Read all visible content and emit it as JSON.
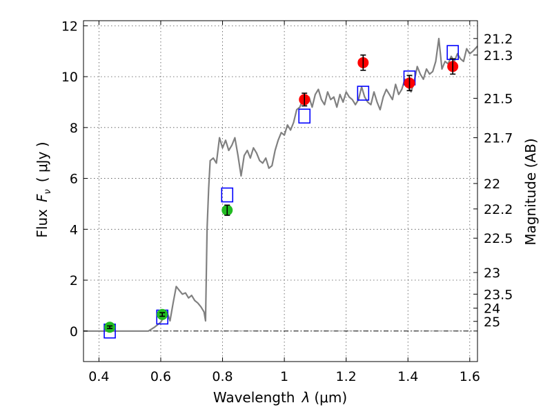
{
  "chart_data": {
    "type": "scatter",
    "xlabel_text": "Wavelength",
    "xlabel_symbol": "λ",
    "xlabel_unit": "(μm)",
    "ylabel_text": "Flux",
    "ylabel_symbol": "F",
    "ylabel_subscript": "ν",
    "ylabel_unit": "( μJy )",
    "y2label": "Magnitude (AB)",
    "xlim": [
      0.35,
      1.625
    ],
    "ylim": [
      -1.2,
      12.2
    ],
    "grid": true,
    "x_ticks": [
      0.4,
      0.6,
      0.8,
      1.0,
      1.2,
      1.4,
      1.6
    ],
    "x_tick_labels": [
      "0.4",
      "0.6",
      "0.8",
      "1",
      "1.2",
      "1.4",
      "1.6"
    ],
    "y_ticks": [
      0,
      2,
      4,
      6,
      8,
      10,
      12
    ],
    "y_tick_labels": [
      "0",
      "2",
      "4",
      "6",
      "8",
      "10",
      "12"
    ],
    "y2_ticks": [
      {
        "flux": 11.5,
        "label": "21.2"
      },
      {
        "flux": 10.85,
        "label": "21.3"
      },
      {
        "flux": 9.15,
        "label": "21.5"
      },
      {
        "flux": 7.6,
        "label": "21.7"
      },
      {
        "flux": 5.8,
        "label": "22"
      },
      {
        "flux": 4.8,
        "label": "22.2"
      },
      {
        "flux": 3.65,
        "label": "22.5"
      },
      {
        "flux": 2.3,
        "label": "23"
      },
      {
        "flux": 1.45,
        "label": "23.5"
      },
      {
        "flux": 0.9,
        "label": "24"
      },
      {
        "flux": 0.38,
        "label": "25"
      }
    ],
    "series": [
      {
        "kind": "line",
        "color": "#808080",
        "x": [
          0.35,
          0.56,
          0.58,
          0.6,
          0.61,
          0.62,
          0.63,
          0.64,
          0.65,
          0.66,
          0.67,
          0.68,
          0.69,
          0.7,
          0.71,
          0.72,
          0.73,
          0.74,
          0.745,
          0.75,
          0.755,
          0.76,
          0.77,
          0.78,
          0.79,
          0.8,
          0.81,
          0.82,
          0.83,
          0.84,
          0.85,
          0.86,
          0.87,
          0.88,
          0.89,
          0.9,
          0.91,
          0.92,
          0.93,
          0.94,
          0.95,
          0.96,
          0.97,
          0.98,
          0.99,
          1.0,
          1.01,
          1.02,
          1.03,
          1.04,
          1.05,
          1.06,
          1.07,
          1.08,
          1.09,
          1.1,
          1.11,
          1.12,
          1.13,
          1.14,
          1.15,
          1.16,
          1.17,
          1.18,
          1.19,
          1.2,
          1.21,
          1.22,
          1.23,
          1.24,
          1.25,
          1.26,
          1.27,
          1.28,
          1.29,
          1.3,
          1.31,
          1.32,
          1.33,
          1.34,
          1.35,
          1.36,
          1.37,
          1.38,
          1.39,
          1.4,
          1.41,
          1.42,
          1.43,
          1.44,
          1.45,
          1.46,
          1.47,
          1.48,
          1.49,
          1.5,
          1.51,
          1.52,
          1.53,
          1.54,
          1.55,
          1.56,
          1.57,
          1.58,
          1.59,
          1.6,
          1.61,
          1.625
        ],
        "values": [
          0.0,
          0.0,
          0.15,
          0.35,
          0.55,
          0.75,
          0.4,
          1.1,
          1.75,
          1.6,
          1.45,
          1.5,
          1.3,
          1.4,
          1.2,
          1.1,
          0.95,
          0.75,
          0.4,
          4.0,
          5.6,
          6.7,
          6.8,
          6.6,
          7.6,
          7.2,
          7.5,
          7.1,
          7.3,
          7.6,
          6.9,
          6.1,
          6.9,
          7.1,
          6.8,
          7.2,
          7.0,
          6.7,
          6.6,
          6.8,
          6.4,
          6.5,
          7.1,
          7.5,
          7.8,
          7.7,
          8.1,
          7.9,
          8.2,
          8.7,
          8.8,
          9.1,
          8.9,
          9.2,
          8.8,
          9.3,
          9.5,
          9.1,
          8.9,
          9.4,
          9.1,
          9.2,
          8.8,
          9.3,
          9.0,
          9.4,
          9.2,
          9.1,
          8.9,
          9.1,
          9.6,
          9.2,
          9.0,
          8.9,
          9.4,
          9.0,
          8.7,
          9.2,
          9.5,
          9.3,
          9.1,
          9.7,
          9.3,
          9.5,
          9.9,
          9.6,
          9.4,
          9.8,
          10.4,
          10.1,
          9.9,
          10.3,
          10.1,
          10.2,
          10.6,
          11.5,
          10.3,
          10.6,
          10.5,
          10.8,
          10.6,
          10.9,
          10.7,
          10.6,
          11.1,
          10.9,
          11.0,
          11.2
        ]
      },
      {
        "kind": "open-square",
        "color": "#0000ff",
        "x": [
          0.435,
          0.605,
          0.815,
          1.065,
          1.255,
          1.405,
          1.545
        ],
        "values": [
          0.0,
          0.55,
          5.35,
          8.45,
          9.35,
          9.95,
          10.95
        ]
      },
      {
        "kind": "filled-circle",
        "color": "#22bb22",
        "x": [
          0.435,
          0.605,
          0.815
        ],
        "values": [
          0.15,
          0.65,
          4.75
        ],
        "errors": [
          0.05,
          0.07,
          0.2
        ]
      },
      {
        "kind": "filled-circle",
        "color": "#ff0000",
        "x": [
          1.065,
          1.255,
          1.405,
          1.545
        ],
        "values": [
          9.1,
          10.55,
          9.75,
          10.4
        ],
        "errors": [
          0.25,
          0.3,
          0.3,
          0.3
        ]
      }
    ],
    "reference_lines": [
      {
        "y": 0,
        "style": "dash-dot",
        "color": "#000000"
      }
    ]
  }
}
